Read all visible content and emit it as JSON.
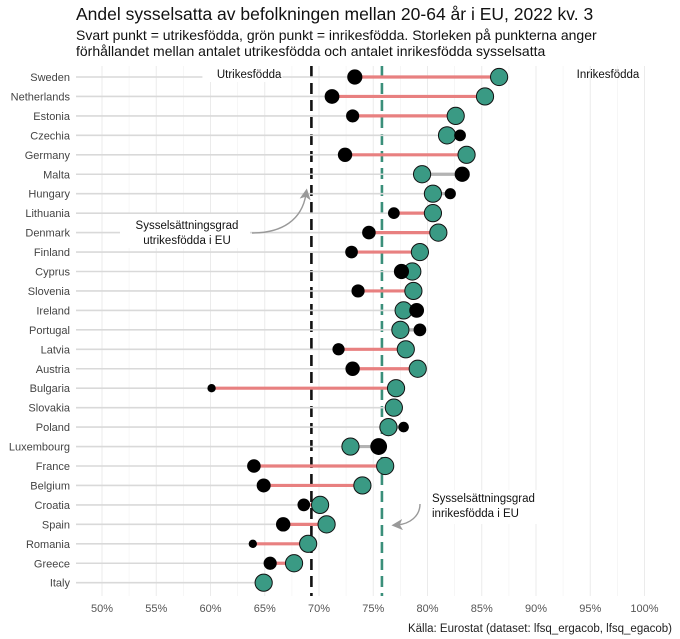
{
  "chart_data": {
    "type": "dumbbell",
    "title": "Andel sysselsatta av befolkningen mellan 20-64 år i EU, 2022 kv. 3",
    "subtitle": [
      "Svart punkt = utrikesfödda, grön punkt = inrikesfödda. Storleken på punkterna anger",
      "förhållandet mellan antalet utrikesfödda och antalet inrikesfödda sysselsatta"
    ],
    "source": "Källa: Eurostat (dataset: lfsq_ergacob, lfsq_egacob)",
    "x_ticks": [
      "50%",
      "55%",
      "60%",
      "65%",
      "70%",
      "75%",
      "80%",
      "85%",
      "90%",
      "95%",
      "100%"
    ],
    "xlim": [
      48.5,
      101.5
    ],
    "eu_foreign_born": 69.3,
    "eu_native_born": 75.8,
    "labels": {
      "foreign_line": "Utrikesfödda",
      "native_line": "Inrikesfödda",
      "annotation_foreign": [
        "Sysselsättningsgrad",
        "utrikesfödda i EU"
      ],
      "annotation_native": [
        "Sysselsättningsgrad",
        "inrikesfödda i EU"
      ]
    },
    "colors": {
      "native_dot": "#3a9a84",
      "foreign_dot": "#000000",
      "segment_gap_positive": "#e88080",
      "segment_gap_negative": "#b3b3b3",
      "guide_line": "#d9d9d9",
      "eu_foreign_line": "#111111",
      "eu_native_line": "#3a8f7a"
    },
    "countries": [
      {
        "name": "Sweden",
        "native": 86.6,
        "foreign": 73.3,
        "rel_size": 0.75
      },
      {
        "name": "Netherlands",
        "native": 85.3,
        "foreign": 71.2,
        "rel_size": 0.7
      },
      {
        "name": "Estonia",
        "native": 82.6,
        "foreign": 73.1,
        "rel_size": 0.5
      },
      {
        "name": "Czechia",
        "native": 81.8,
        "foreign": 83.0,
        "rel_size": 0.35
      },
      {
        "name": "Germany",
        "native": 83.6,
        "foreign": 72.4,
        "rel_size": 0.65
      },
      {
        "name": "Malta",
        "native": 79.5,
        "foreign": 83.2,
        "rel_size": 0.75
      },
      {
        "name": "Hungary",
        "native": 80.5,
        "foreign": 82.1,
        "rel_size": 0.3
      },
      {
        "name": "Lithuania",
        "native": 80.5,
        "foreign": 76.9,
        "rel_size": 0.35
      },
      {
        "name": "Denmark",
        "native": 81.0,
        "foreign": 74.6,
        "rel_size": 0.55
      },
      {
        "name": "Finland",
        "native": 79.3,
        "foreign": 73.0,
        "rel_size": 0.45
      },
      {
        "name": "Cyprus",
        "native": 78.6,
        "foreign": 77.6,
        "rel_size": 0.75
      },
      {
        "name": "Slovenia",
        "native": 78.7,
        "foreign": 73.6,
        "rel_size": 0.5
      },
      {
        "name": "Ireland",
        "native": 77.8,
        "foreign": 79.0,
        "rel_size": 0.7
      },
      {
        "name": "Portugal",
        "native": 77.5,
        "foreign": 79.3,
        "rel_size": 0.45
      },
      {
        "name": "Latvia",
        "native": 78.0,
        "foreign": 71.8,
        "rel_size": 0.4
      },
      {
        "name": "Austria",
        "native": 79.1,
        "foreign": 73.1,
        "rel_size": 0.65
      },
      {
        "name": "Bulgaria",
        "native": 77.1,
        "foreign": 60.1,
        "rel_size": 0.1
      },
      {
        "name": "Slovakia",
        "native": 76.9,
        "foreign": null,
        "rel_size": 0
      },
      {
        "name": "Poland",
        "native": 76.4,
        "foreign": 77.8,
        "rel_size": 0.25
      },
      {
        "name": "Luxembourg",
        "native": 72.9,
        "foreign": 75.5,
        "rel_size": 1.0
      },
      {
        "name": "France",
        "native": 76.1,
        "foreign": 64.0,
        "rel_size": 0.55
      },
      {
        "name": "Belgium",
        "native": 74.0,
        "foreign": 64.9,
        "rel_size": 0.6
      },
      {
        "name": "Croatia",
        "native": 70.1,
        "foreign": 68.6,
        "rel_size": 0.45
      },
      {
        "name": "Spain",
        "native": 70.7,
        "foreign": 66.7,
        "rel_size": 0.65
      },
      {
        "name": "Romania",
        "native": 69.0,
        "foreign": 63.9,
        "rel_size": 0.1
      },
      {
        "name": "Greece",
        "native": 67.7,
        "foreign": 65.5,
        "rel_size": 0.5
      },
      {
        "name": "Italy",
        "native": 64.9,
        "foreign": null,
        "rel_size": 0
      }
    ]
  }
}
